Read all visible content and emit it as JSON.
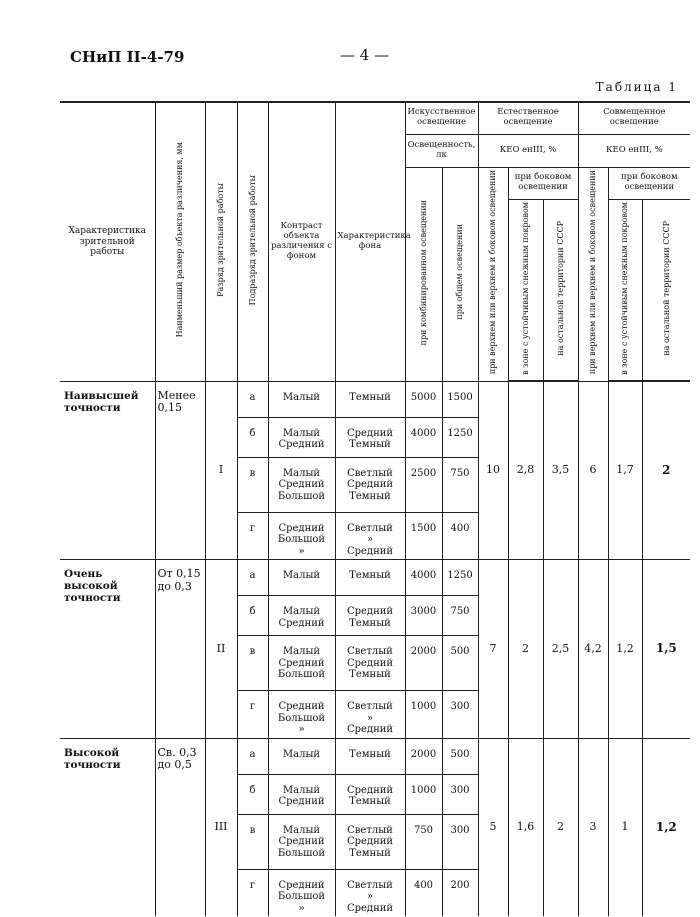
{
  "header": {
    "doc_code": "СНиП II-4-79",
    "page": "— 4 —",
    "caption": "Таблица 1"
  },
  "columns": {
    "work": "Характеристика зрительной работы",
    "size": "Наименьший размер объекта различения, мм",
    "category": "Разряд зрительной работы",
    "subcategory": "Подразряд зрительной работы",
    "contrast": "Контраст объекта различения с фоном",
    "background": "Характеристика фона",
    "artificial": "Искусственное освещение",
    "illuminance": "Освещенность, лк",
    "combined": "при комбинированном освещении",
    "general": "при общем освещении",
    "natural": "Естественное освещение",
    "keo_nat": "КЕО eнIII, %",
    "top_side": "при верхнем или верхнем и боковом освещении",
    "side": "при боковом освещении",
    "snow_zone": "в зоне с устойчивым снежным покровом",
    "rest": "на остальной территории СССР",
    "mixed": "Совмещенное освещение",
    "keo_mix": "КЕО eнIII, %",
    "top_side2": "при верхнем или верхнем и боковом освещении",
    "side2": "при боковом освещении",
    "snow_zone2": "в зоне с устойчивым снежным покровом",
    "rest2": "на остальной территории СССР"
  },
  "groups": [
    {
      "name": "Наивысшей точности",
      "size": "Менее 0,15",
      "category": "I",
      "keo": [
        "10",
        "2,8",
        "3,5",
        "6",
        "1,7",
        "2"
      ],
      "rows": [
        {
          "sub": "а",
          "contrast": "Малый",
          "bg": "Темный",
          "comb": "5000",
          "gen": "1500"
        },
        {
          "sub": "б",
          "contrast": "Малый\nСредний",
          "bg": "Средний\nТемный",
          "comb": "4000",
          "gen": "1250"
        },
        {
          "sub": "в",
          "contrast": "Малый\nСредний\nБольшой",
          "bg": "Светлый\nСредний\nТемный",
          "comb": "2500",
          "gen": "750"
        },
        {
          "sub": "г",
          "contrast": "Средний\nБольшой\n»",
          "bg": "Светлый\n»\nСредний",
          "comb": "1500",
          "gen": "400"
        }
      ]
    },
    {
      "name": "Очень высокой точности",
      "size": "От 0,15 до 0,3",
      "category": "II",
      "keo": [
        "7",
        "2",
        "2,5",
        "4,2",
        "1,2",
        "1,5"
      ],
      "rows": [
        {
          "sub": "а",
          "contrast": "Малый",
          "bg": "Темный",
          "comb": "4000",
          "gen": "1250"
        },
        {
          "sub": "б",
          "contrast": "Малый\nСредний",
          "bg": "Средний\nТемный",
          "comb": "3000",
          "gen": "750"
        },
        {
          "sub": "в",
          "contrast": "Малый\nСредний\nБольшой",
          "bg": "Светлый\nСредний\nТемный",
          "comb": "2000",
          "gen": "500"
        },
        {
          "sub": "г",
          "contrast": "Средний\nБольшой\n»",
          "bg": "Светлый\n»\nСредний",
          "comb": "1000",
          "gen": "300"
        }
      ]
    },
    {
      "name": "Высокой точности",
      "size": "Св. 0,3 до 0,5",
      "category": "III",
      "keo": [
        "5",
        "1,6",
        "2",
        "3",
        "1",
        "1,2"
      ],
      "rows": [
        {
          "sub": "а",
          "contrast": "Малый",
          "bg": "Темный",
          "comb": "2000",
          "gen": "500"
        },
        {
          "sub": "б",
          "contrast": "Малый\nСредний",
          "bg": "Средний\nТемный",
          "comb": "1000",
          "gen": "300"
        },
        {
          "sub": "в",
          "contrast": "Малый\nСредний\nБольшой",
          "bg": "Светлый\nСредний\nТемный",
          "comb": "750",
          "gen": "300"
        },
        {
          "sub": "г",
          "contrast": "Средний\nБольшой\n»",
          "bg": "Светлый\n»\nСредний",
          "comb": "400",
          "gen": "200"
        }
      ]
    }
  ]
}
